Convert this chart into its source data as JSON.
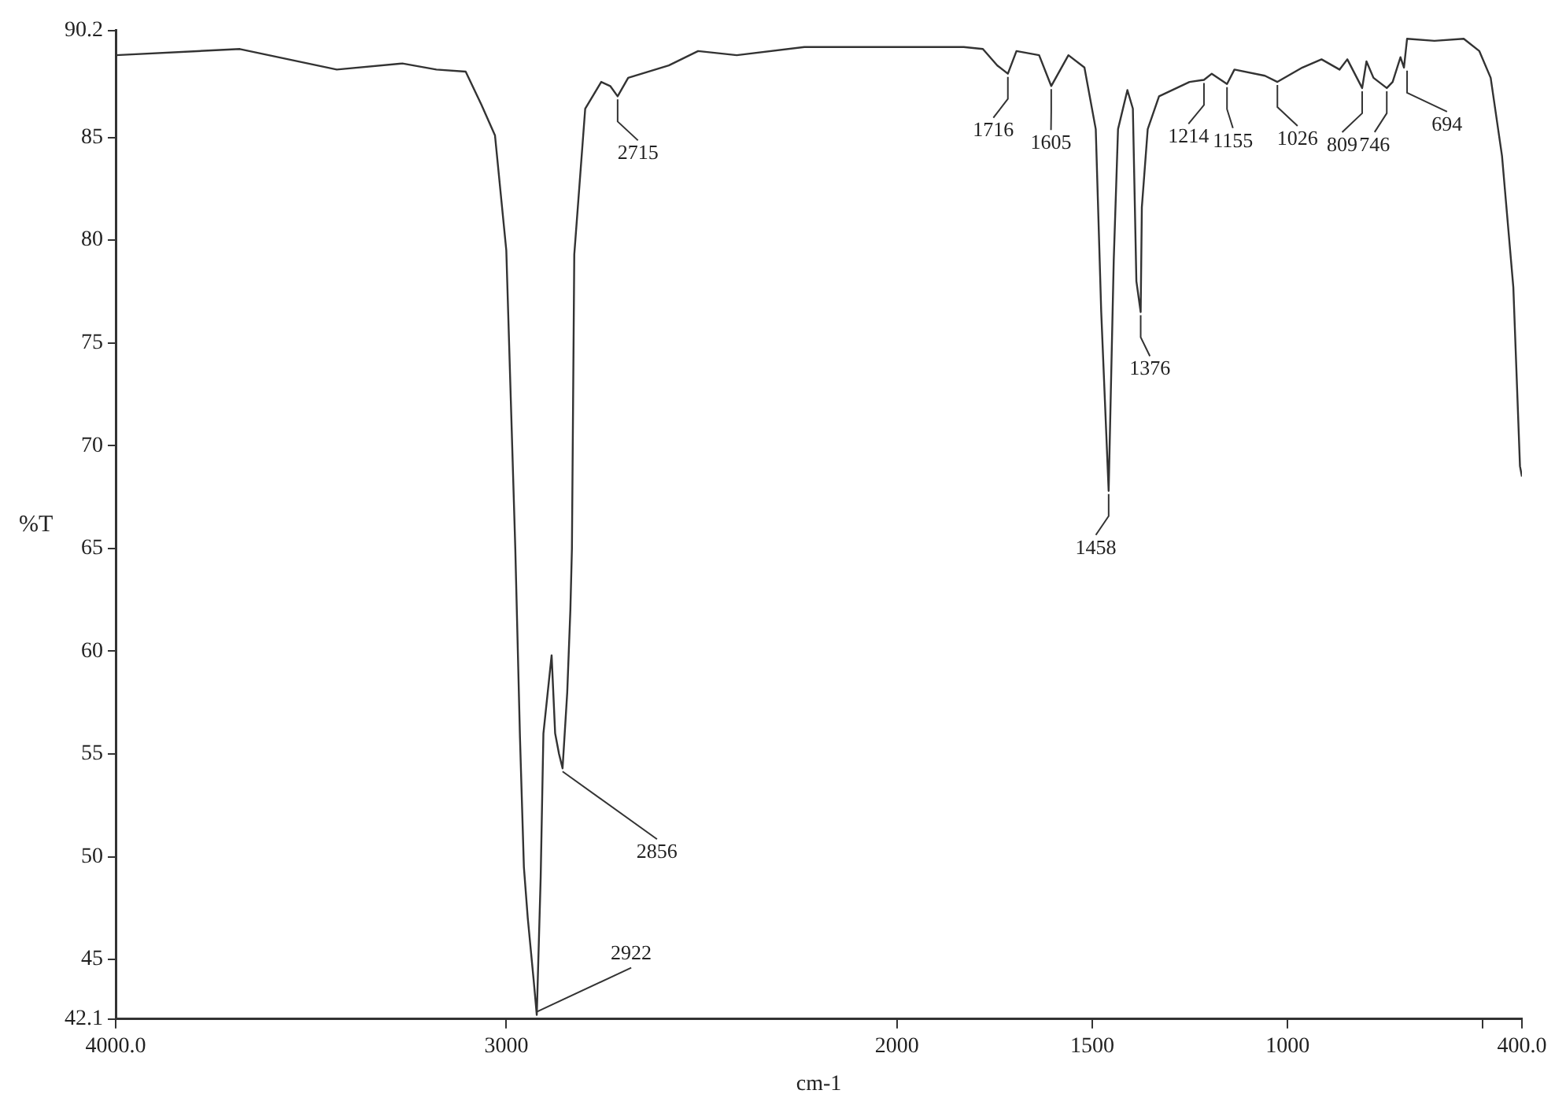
{
  "chart_data": {
    "type": "line",
    "xlabel": "cm-1",
    "ylabel": "%T",
    "x": [
      4000,
      3682,
      3434,
      3266,
      3179,
      3104,
      3064,
      3029,
      3000,
      2977,
      2965,
      2955,
      2945,
      2930,
      2922,
      2912,
      2905,
      2884,
      2875,
      2865,
      2856,
      2844,
      2836,
      2832,
      2826,
      2798,
      2757,
      2734,
      2715,
      2688,
      2584,
      2509,
      2410,
      2237,
      2000,
      1829,
      1780,
      1743,
      1716,
      1694,
      1636,
      1605,
      1561,
      1520,
      1491,
      1477,
      1458,
      1445,
      1434,
      1410,
      1396,
      1387,
      1376,
      1373,
      1358,
      1329,
      1251,
      1214,
      1194,
      1155,
      1136,
      1058,
      1026,
      962,
      913,
      867,
      847,
      809,
      798,
      780,
      746,
      731,
      711,
      702,
      694,
      624,
      549,
      509,
      480,
      451,
      422,
      405,
      400
    ],
    "values": [
      89.0,
      89.3,
      88.3,
      88.6,
      88.3,
      88.2,
      86.6,
      85.1,
      79.5,
      65,
      55.8,
      49.5,
      47,
      44,
      42.3,
      49,
      56,
      59.8,
      56,
      55,
      54.3,
      58,
      62,
      65,
      79.3,
      86.4,
      87.7,
      87.5,
      87.0,
      87.9,
      88.5,
      89.2,
      89.0,
      89.4,
      89.4,
      89.4,
      89.3,
      88.5,
      88.1,
      89.2,
      89.0,
      87.5,
      89.0,
      88.4,
      85.4,
      76.5,
      67.8,
      79,
      85.4,
      87.3,
      86.4,
      78,
      76.5,
      81.6,
      85.4,
      87,
      87.7,
      87.8,
      88.1,
      87.6,
      88.3,
      88.0,
      87.7,
      88.4,
      88.8,
      88.3,
      88.8,
      87.4,
      88.7,
      87.9,
      87.4,
      87.7,
      88.9,
      88.4,
      89.8,
      89.7,
      89.8,
      89.2,
      87.9,
      84.1,
      77.7,
      69,
      68.5
    ],
    "color": "#333333",
    "marker": "none",
    "line_style": "solid",
    "xlim": [
      4000,
      400
    ],
    "xticks": [
      {
        "value": 4000,
        "label": "4000.0"
      },
      3000,
      2000,
      1500,
      1000,
      {
        "value": 500,
        "label": null
      },
      {
        "value": 400,
        "label": "400.0"
      }
    ],
    "ylim": [
      42.1,
      90.2
    ],
    "yticks": [
      42.1,
      45,
      50,
      55,
      60,
      65,
      70,
      75,
      80,
      85,
      90.2
    ],
    "annotations": [
      {
        "text": "2922",
        "x": 2922,
        "y": 42.3
      },
      {
        "text": "2856",
        "x": 2856,
        "y": 54.3
      },
      {
        "text": "2715",
        "x": 2715,
        "y": 87.0
      },
      {
        "text": "1716",
        "x": 1716,
        "y": 88.1
      },
      {
        "text": "1605",
        "x": 1605,
        "y": 87.5
      },
      {
        "text": "1458",
        "x": 1458,
        "y": 67.8
      },
      {
        "text": "1376",
        "x": 1376,
        "y": 76.5
      },
      {
        "text": "1214",
        "x": 1214,
        "y": 87.8
      },
      {
        "text": "1155",
        "x": 1155,
        "y": 87.6
      },
      {
        "text": "1026",
        "x": 1026,
        "y": 87.7
      },
      {
        "text": "809",
        "x": 809,
        "y": 87.4
      },
      {
        "text": "746",
        "x": 746,
        "y": 87.4
      },
      {
        "text": "694",
        "x": 694,
        "y": 88.4
      }
    ]
  }
}
